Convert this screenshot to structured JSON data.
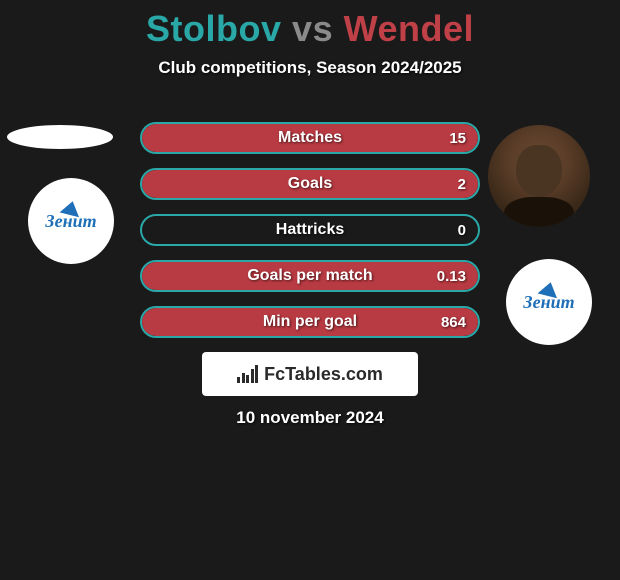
{
  "title": {
    "player1": "Stolbov",
    "vs": "vs",
    "player2": "Wendel",
    "color_p1": "#2aa8a8",
    "color_vs": "#8a8a8a",
    "color_p2": "#c04048"
  },
  "subtitle": "Club competitions, Season 2024/2025",
  "left_badge_text": "Зенит",
  "right_badge_text": "Зенит",
  "stats": {
    "border_color_p1": "#2aa8a8",
    "fill_color_p2": "#b83a42",
    "rows": [
      {
        "label": "Matches",
        "left": "",
        "right": "15",
        "fill_pct": 100
      },
      {
        "label": "Goals",
        "left": "",
        "right": "2",
        "fill_pct": 100
      },
      {
        "label": "Hattricks",
        "left": "",
        "right": "0",
        "fill_pct": 0
      },
      {
        "label": "Goals per match",
        "left": "",
        "right": "0.13",
        "fill_pct": 100
      },
      {
        "label": "Min per goal",
        "left": "",
        "right": "864",
        "fill_pct": 100
      }
    ]
  },
  "branding_text": "FcTables.com",
  "date": "10 november 2024",
  "colors": {
    "background": "#1a1a1a",
    "text": "#ffffff"
  }
}
